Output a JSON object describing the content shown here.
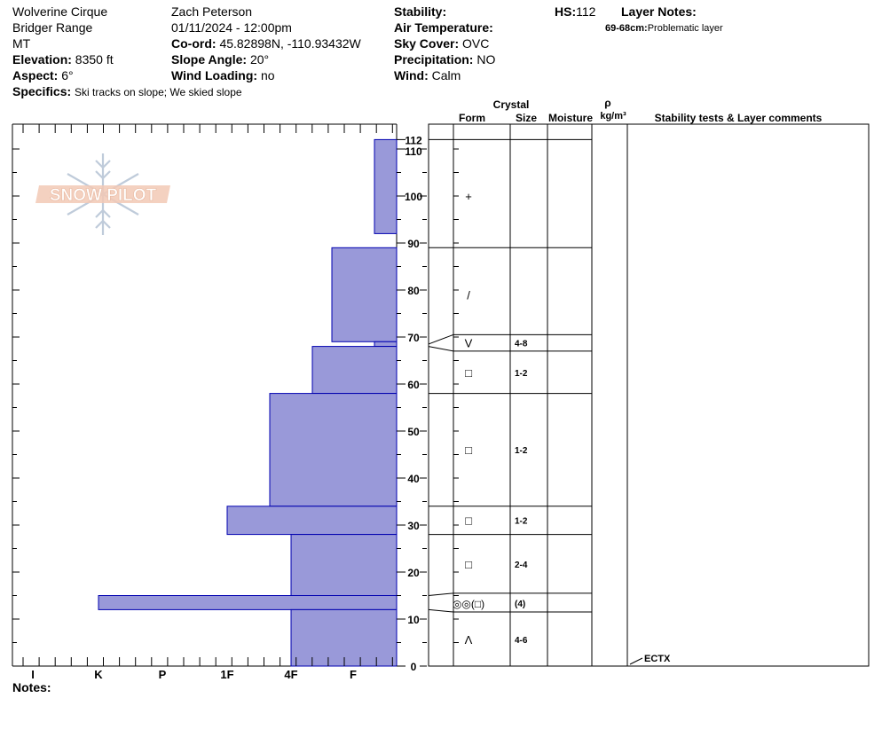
{
  "header": {
    "location": "Wolverine Cirque",
    "range": "Bridger Range",
    "state": "MT",
    "elevation_label": "Elevation:",
    "elevation_value": "8350 ft",
    "aspect_label": "Aspect:",
    "aspect_value": "6°",
    "specifics_label": "Specifics:",
    "specifics_value": "Ski tracks on slope; We skied slope",
    "observer": "Zach Peterson",
    "datetime": "01/11/2024 - 12:00pm",
    "coord_label": "Co-ord:",
    "coord_value": "45.82898N, -110.93432W",
    "slope_label": "Slope Angle:",
    "slope_value": "20°",
    "wind_loading_label": "Wind Loading:",
    "wind_loading_value": "no",
    "stability_label": "Stability:",
    "stability_value": "",
    "air_temp_label": "Air Temperature:",
    "air_temp_value": "",
    "sky_label": "Sky Cover:",
    "sky_value": "OVC",
    "precip_label": "Precipitation:",
    "precip_value": "NO",
    "wind_label": "Wind:",
    "wind_value": "Calm",
    "hs_label": "HS:",
    "hs_value": "112",
    "layer_notes_label": "Layer Notes:",
    "layer_note_depth": "69-68cm:",
    "layer_note_text": "Problematic layer"
  },
  "logo_text": "SNOW PILOT",
  "notes_label": "Notes:",
  "columns": {
    "crystal": "Crystal",
    "form": "Form",
    "size": "Size",
    "moisture": "Moisture",
    "rho": "ρ",
    "density_unit": "kg/m³",
    "stability": "Stability tests & Layer comments"
  },
  "colors": {
    "hardness_fill": "#9999d9",
    "hardness_stroke": "#0000b0"
  },
  "chart_data": {
    "type": "bar",
    "ylim": [
      0,
      112
    ],
    "y_ticks": [
      "0",
      "10",
      "20",
      "30",
      "40",
      "50",
      "60",
      "70",
      "80",
      "90",
      "100",
      "110",
      "112"
    ],
    "x_ticks": [
      "I",
      "K",
      "P",
      "1F",
      "4F",
      "F"
    ],
    "hardness_profile": [
      {
        "bottom": 92,
        "top": 112,
        "hardness": "F-"
      },
      {
        "bottom": 69,
        "top": 89,
        "hardness": "F+"
      },
      {
        "bottom": 68,
        "top": 69,
        "hardness": "F-"
      },
      {
        "bottom": 58,
        "top": 68,
        "hardness": "4F-"
      },
      {
        "bottom": 34,
        "top": 58,
        "hardness": "4F+"
      },
      {
        "bottom": 28,
        "top": 34,
        "hardness": "1F"
      },
      {
        "bottom": 15,
        "top": 28,
        "hardness": "4F"
      },
      {
        "bottom": 12,
        "top": 15,
        "hardness": "K"
      },
      {
        "bottom": 0,
        "top": 12,
        "hardness": "4F"
      }
    ],
    "layer_boundaries": [
      112,
      89,
      70.5,
      67,
      58,
      34,
      28,
      15.5,
      11.5
    ],
    "layers": [
      {
        "depth": 100,
        "form": "+",
        "size": ""
      },
      {
        "depth": 79,
        "form": "/",
        "size": ""
      },
      {
        "depth": 68.8,
        "form": "V",
        "size": "4-8"
      },
      {
        "depth": 62.5,
        "form": "□",
        "size": "1-2"
      },
      {
        "depth": 46,
        "form": "□",
        "size": "1-2"
      },
      {
        "depth": 31,
        "form": "□",
        "size": "1-2"
      },
      {
        "depth": 21.7,
        "form": "□",
        "size": "2-4"
      },
      {
        "depth": 13.4,
        "form": "◎◎(□)",
        "size": "(4)"
      },
      {
        "depth": 5.7,
        "form": "Λ",
        "size": "4-6"
      }
    ],
    "tests": [
      {
        "depth": 0,
        "label": "ECTX"
      }
    ]
  }
}
